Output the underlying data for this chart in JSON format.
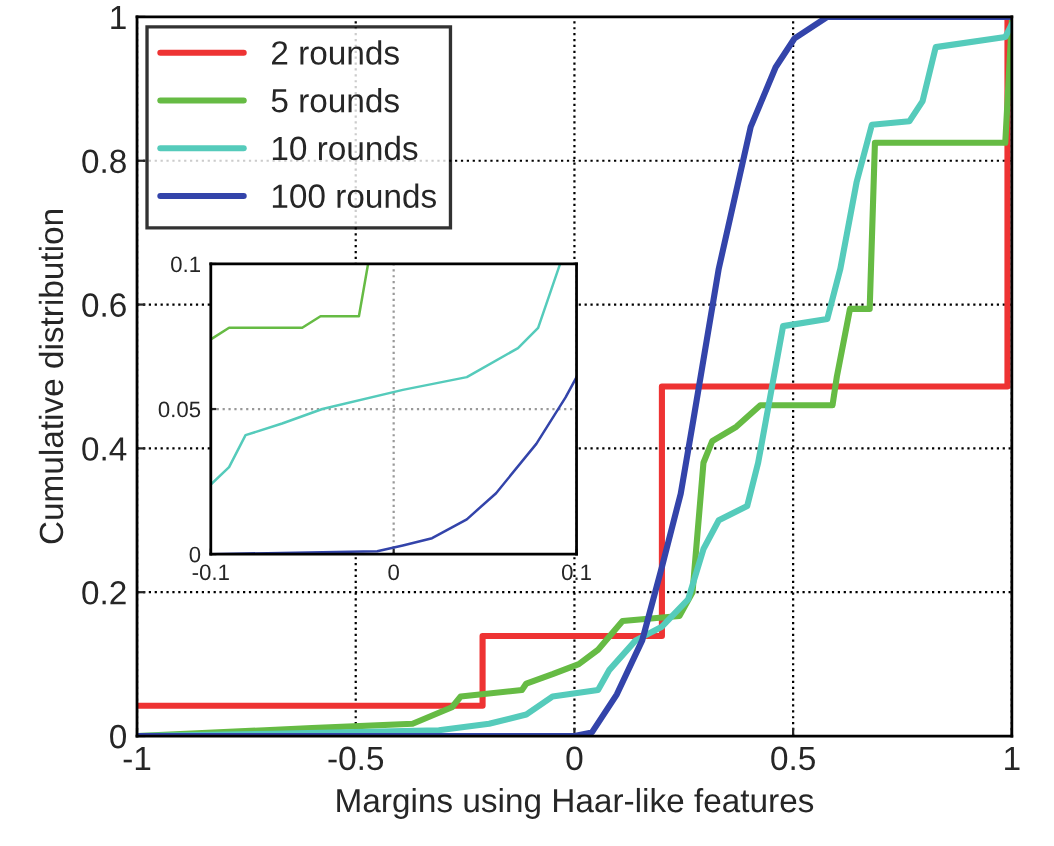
{
  "chart_data": [
    {
      "type": "line",
      "xlabel": "Margins using Haar-like features",
      "ylabel": "Cumulative distribution",
      "xlim": [
        -1,
        1
      ],
      "ylim": [
        0,
        1
      ],
      "xticks": [
        -1,
        -0.5,
        0,
        0.5,
        1
      ],
      "yticks": [
        0,
        0.2,
        0.4,
        0.6,
        0.8,
        1
      ],
      "grid": true,
      "legend": "top left",
      "line_style": "solid",
      "series": [
        {
          "name": "2 rounds",
          "color": "#ee3333",
          "x": [
            -1,
            -0.21,
            -0.21,
            0.2,
            0.2,
            0.99,
            0.99,
            1
          ],
          "values": [
            0.042,
            0.042,
            0.139,
            0.139,
            0.486,
            0.486,
            1,
            1
          ]
        },
        {
          "name": "5 rounds",
          "color": "#66bb44",
          "x": [
            -1,
            -0.6,
            -0.37,
            -0.28,
            -0.26,
            -0.12,
            -0.11,
            -0.05,
            0.01,
            0.054,
            0.11,
            0.24,
            0.27,
            0.295,
            0.315,
            0.37,
            0.425,
            0.59,
            0.6,
            0.63,
            0.675,
            0.687,
            0.985,
            1
          ],
          "values": [
            0,
            0.011,
            0.017,
            0.04,
            0.055,
            0.064,
            0.073,
            0.086,
            0.1,
            0.12,
            0.16,
            0.167,
            0.2,
            0.38,
            0.41,
            0.43,
            0.46,
            0.46,
            0.5,
            0.594,
            0.594,
            0.825,
            0.825,
            0.995
          ]
        },
        {
          "name": "10 rounds",
          "color": "#55cbbb",
          "x": [
            -1,
            -0.69,
            -0.31,
            -0.195,
            -0.11,
            -0.05,
            0.054,
            0.08,
            0.14,
            0.2,
            0.26,
            0.295,
            0.33,
            0.395,
            0.42,
            0.447,
            0.477,
            0.578,
            0.608,
            0.645,
            0.68,
            0.766,
            0.796,
            0.826,
            0.985,
            1
          ],
          "values": [
            0,
            0.003,
            0.008,
            0.017,
            0.03,
            0.055,
            0.064,
            0.092,
            0.133,
            0.152,
            0.19,
            0.26,
            0.3,
            0.32,
            0.38,
            0.47,
            0.57,
            0.58,
            0.65,
            0.77,
            0.85,
            0.855,
            0.883,
            0.958,
            0.972,
            0.99
          ]
        },
        {
          "name": "100 rounds",
          "color": "#3344aa",
          "x": [
            -1,
            0,
            0.04,
            0.097,
            0.155,
            0.2,
            0.243,
            0.272,
            0.33,
            0.403,
            0.46,
            0.503,
            0.578,
            1
          ],
          "values": [
            0,
            0,
            0.005,
            0.058,
            0.133,
            0.235,
            0.337,
            0.44,
            0.65,
            0.847,
            0.93,
            0.97,
            1,
            1
          ]
        }
      ]
    },
    {
      "type": "line",
      "xlim": [
        -0.1,
        0.1
      ],
      "ylim": [
        0,
        0.1
      ],
      "xticks": [
        -0.1,
        0,
        0.1
      ],
      "yticks": [
        0,
        0.05,
        0.1
      ],
      "grid": true,
      "line_style": "solid",
      "series": [
        {
          "color": "#66bb44",
          "x": [
            -0.1,
            -0.09,
            -0.05,
            -0.04,
            -0.019,
            -0.014
          ],
          "values": [
            0.074,
            0.078,
            0.078,
            0.082,
            0.082,
            0.1
          ]
        },
        {
          "color": "#55cbbb",
          "x": [
            -0.1,
            -0.09,
            -0.081,
            -0.061,
            -0.039,
            0.005,
            0.04,
            0.068,
            0.079,
            0.091
          ],
          "values": [
            0.024,
            0.03,
            0.041,
            0.045,
            0.05,
            0.0566,
            0.061,
            0.071,
            0.078,
            0.1
          ]
        },
        {
          "color": "#3344aa",
          "x": [
            -0.1,
            -0.009,
            0.005,
            0.021,
            0.04,
            0.056,
            0.078,
            0.094,
            0.1
          ],
          "values": [
            0,
            0.001,
            0.003,
            0.0055,
            0.012,
            0.021,
            0.038,
            0.054,
            0.061
          ]
        }
      ]
    }
  ]
}
